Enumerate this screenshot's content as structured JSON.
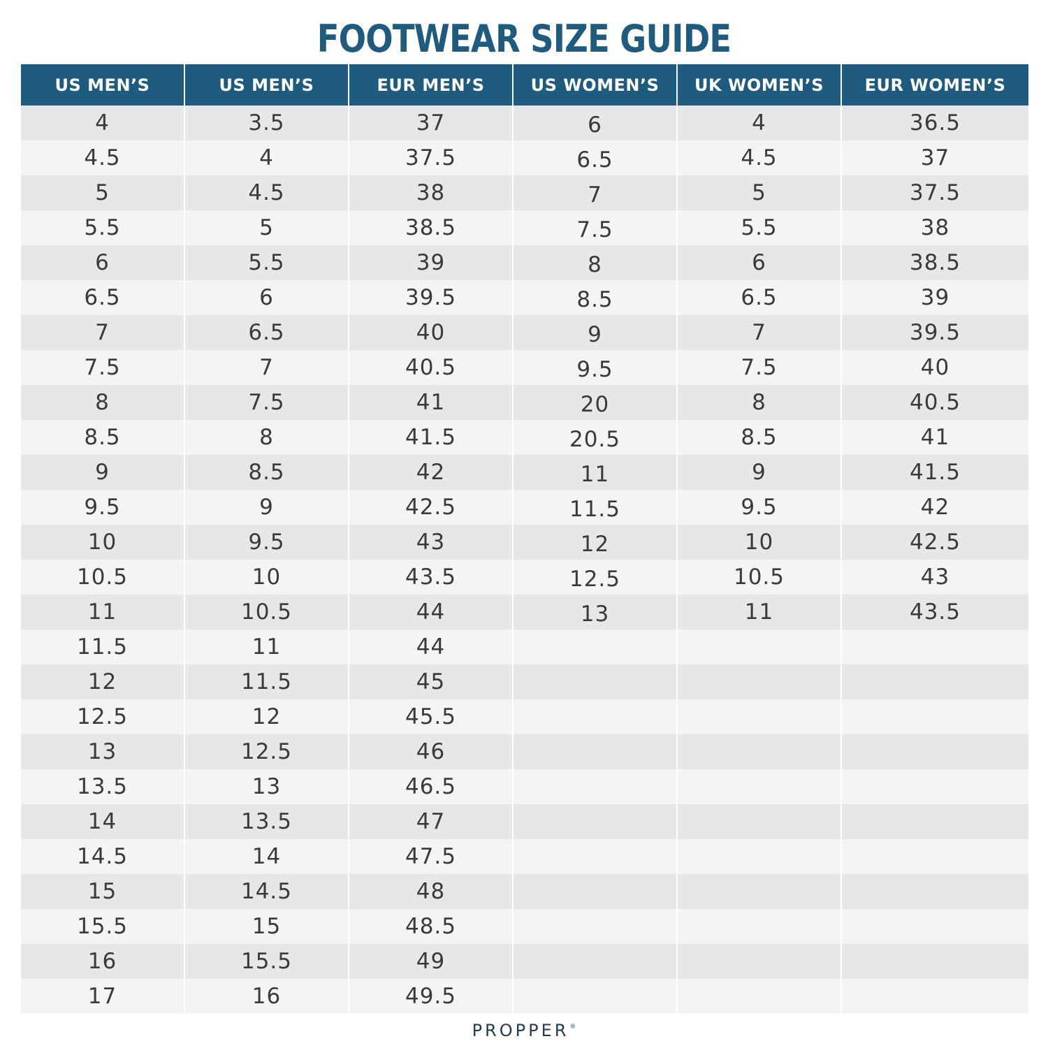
{
  "title": "FOOTWEAR SIZE GUIDE",
  "headers": [
    "US MEN’S",
    "US MEN’S",
    "EUR MEN’S",
    "US WOMEN’S",
    "UK WOMEN’S",
    "EUR WOMEN’S"
  ],
  "rows": [
    [
      "4",
      "3.5",
      "37",
      "6",
      "4",
      "36.5"
    ],
    [
      "4.5",
      "4",
      "37.5",
      "6.5",
      "4.5",
      "37"
    ],
    [
      "5",
      "4.5",
      "38",
      "7",
      "5",
      "37.5"
    ],
    [
      "5.5",
      "5",
      "38.5",
      "7.5",
      "5.5",
      "38"
    ],
    [
      "6",
      "5.5",
      "39",
      "8",
      "6",
      "38.5"
    ],
    [
      "6.5",
      "6",
      "39.5",
      "8.5",
      "6.5",
      "39"
    ],
    [
      "7",
      "6.5",
      "40",
      "9",
      "7",
      "39.5"
    ],
    [
      "7.5",
      "7",
      "40.5",
      "9.5",
      "7.5",
      "40"
    ],
    [
      "8",
      "7.5",
      "41",
      "20",
      "8",
      "40.5"
    ],
    [
      "8.5",
      "8",
      "41.5",
      "20.5",
      "8.5",
      "41"
    ],
    [
      "9",
      "8.5",
      "42",
      "11",
      "9",
      "41.5"
    ],
    [
      "9.5",
      "9",
      "42.5",
      "11.5",
      "9.5",
      "42"
    ],
    [
      "10",
      "9.5",
      "43",
      "12",
      "10",
      "42.5"
    ],
    [
      "10.5",
      "10",
      "43.5",
      "12.5",
      "10.5",
      "43"
    ],
    [
      "11",
      "10.5",
      "44",
      "13",
      "11",
      "43.5"
    ],
    [
      "11.5",
      "11",
      "44",
      "",
      "",
      ""
    ],
    [
      "12",
      "11.5",
      "45",
      "",
      "",
      ""
    ],
    [
      "12.5",
      "12",
      "45.5",
      "",
      "",
      ""
    ],
    [
      "13",
      "12.5",
      "46",
      "",
      "",
      ""
    ],
    [
      "13.5",
      "13",
      "46.5",
      "",
      "",
      ""
    ],
    [
      "14",
      "13.5",
      "47",
      "",
      "",
      ""
    ],
    [
      "14.5",
      "14",
      "47.5",
      "",
      "",
      ""
    ],
    [
      "15",
      "14.5",
      "48",
      "",
      "",
      ""
    ],
    [
      "15.5",
      "15",
      "48.5",
      "",
      "",
      ""
    ],
    [
      "16",
      "15.5",
      "49",
      "",
      "",
      ""
    ],
    [
      "17",
      "16",
      "49.5",
      "",
      "",
      ""
    ]
  ],
  "brand": "PROPPER",
  "brand_mark": "®",
  "colors": {
    "header_bg": "#1f5b7e",
    "title": "#1f5b7e",
    "row_odd": "#e6e7e9",
    "row_even": "#f3f4f6",
    "text": "#3a3a3a",
    "brand": "#1f3b55"
  }
}
